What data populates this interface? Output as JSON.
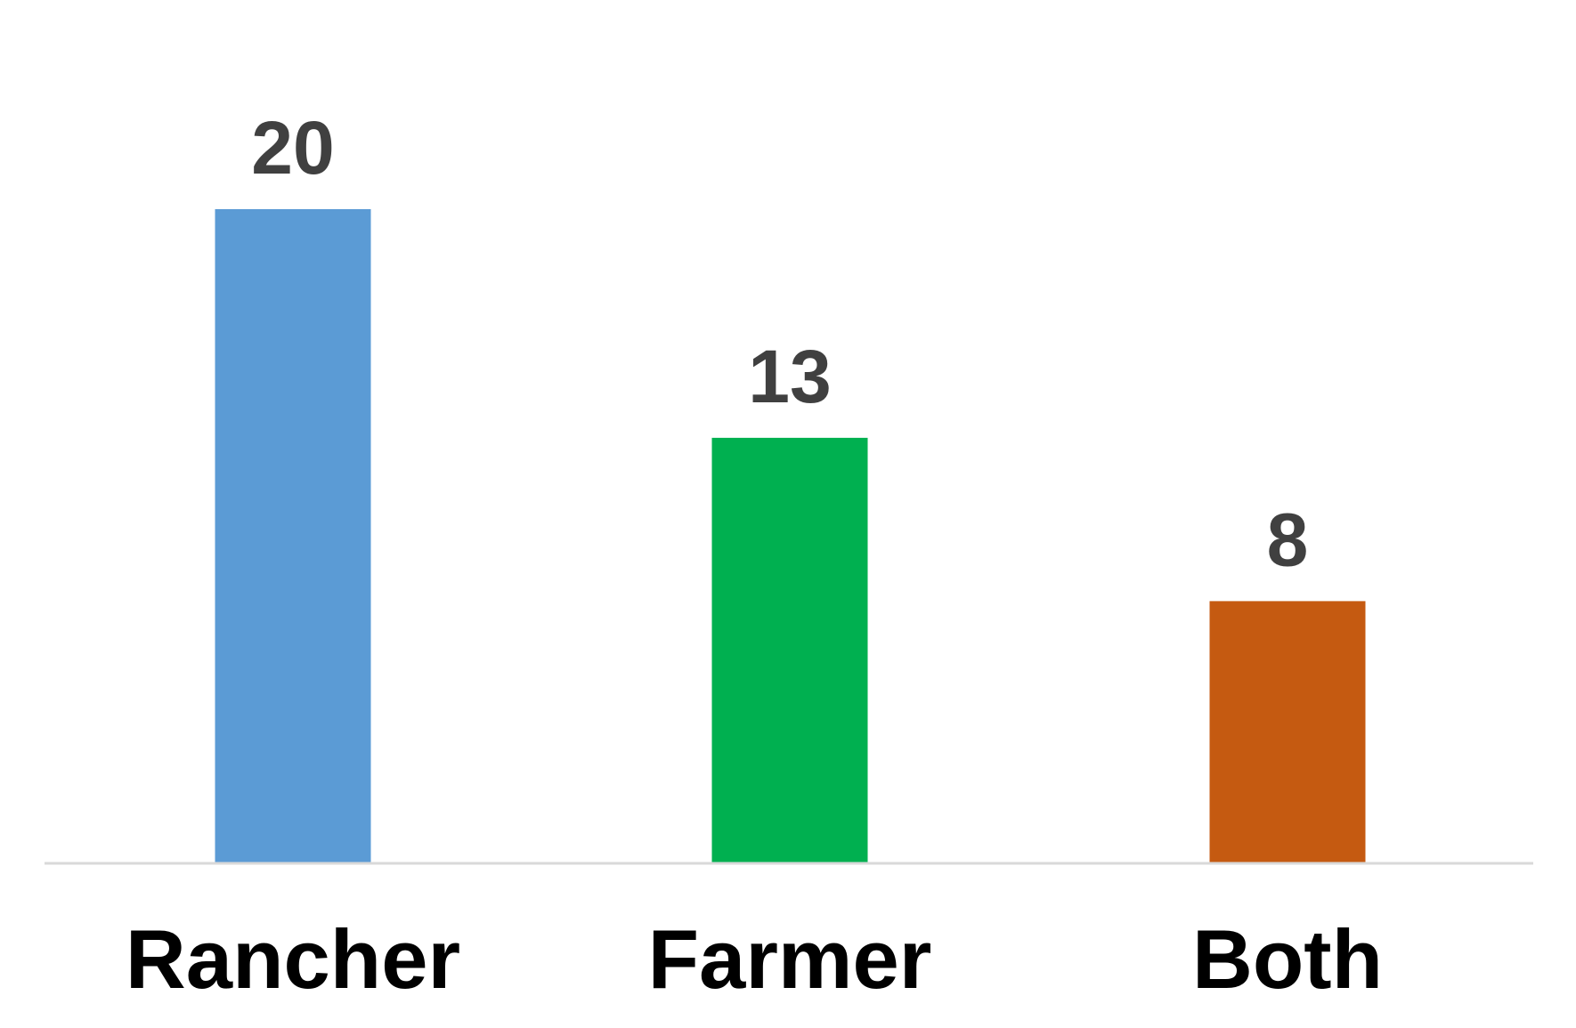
{
  "chart_data": {
    "type": "bar",
    "title": "",
    "xlabel": "",
    "ylabel": "",
    "categories": [
      "Rancher",
      "Farmer",
      "Both"
    ],
    "values": [
      20,
      13,
      8
    ],
    "data_labels": [
      "20",
      "13",
      "8"
    ],
    "colors": [
      "#5B9BD5",
      "#00B050",
      "#C55A11"
    ],
    "ylim": [
      0,
      20
    ],
    "grid": false,
    "legend": "none",
    "axis_color": "#D9D9D9"
  }
}
